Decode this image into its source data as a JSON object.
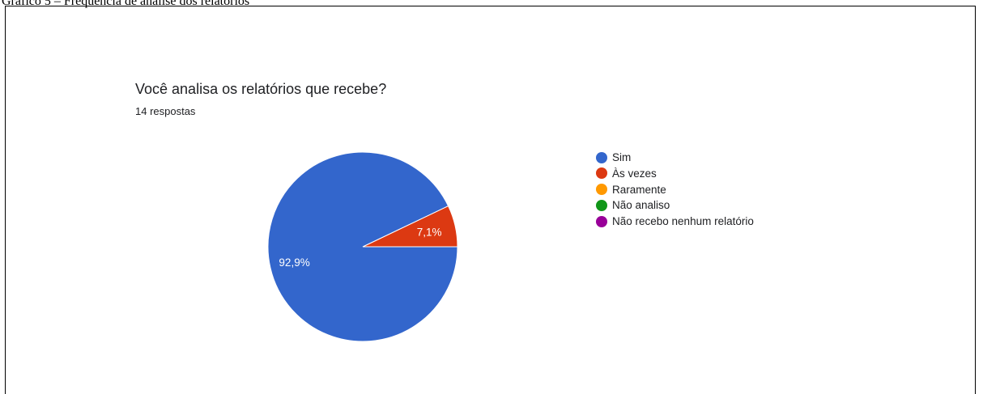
{
  "caption": "Gráfico 5 – Frequência de análise dos relatórios",
  "chart_data": {
    "type": "pie",
    "title": "Você analisa os relatórios que recebe?",
    "subtitle": "14 respostas",
    "legend_position": "right",
    "slices": [
      {
        "label": "Sim",
        "value": 92.9,
        "display": "92,9%",
        "color": "#3366cc"
      },
      {
        "label": "Às vezes",
        "value": 7.1,
        "display": "7,1%",
        "color": "#dc3912"
      },
      {
        "label": "Raramente",
        "value": 0,
        "display": "",
        "color": "#ff9900"
      },
      {
        "label": "Não analiso",
        "value": 0,
        "display": "",
        "color": "#109618"
      },
      {
        "label": "Não recebo nenhum relatório",
        "value": 0,
        "display": "",
        "color": "#990099"
      }
    ]
  }
}
